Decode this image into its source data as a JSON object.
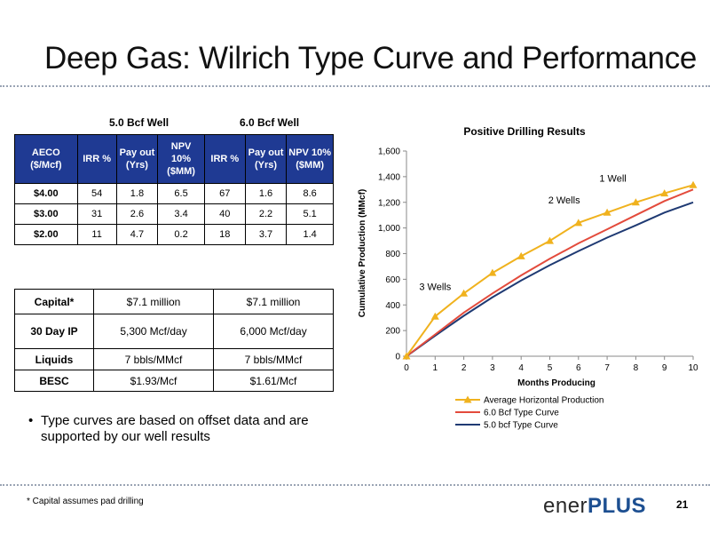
{
  "slide": {
    "title": "Deep Gas: Wilrich Type Curve and Performance",
    "page_number": "21",
    "footnote": "* Capital assumes pad drilling",
    "logo": {
      "part1": "ener",
      "part2": "PLUS"
    },
    "bullet": "Type curves are based on offset data and are supported by our well results"
  },
  "econ_table": {
    "group1": "5.0 Bcf Well",
    "group2": "6.0 Bcf Well",
    "headers": [
      "AECO ($/Mcf)",
      "IRR %",
      "Pay out (Yrs)",
      "NPV 10% ($MM)",
      "IRR %",
      "Pay out (Yrs)",
      "NPV 10% ($MM)"
    ],
    "rows": [
      [
        "$4.00",
        "54",
        "1.8",
        "6.5",
        "67",
        "1.6",
        "8.6"
      ],
      [
        "$3.00",
        "31",
        "2.6",
        "3.4",
        "40",
        "2.2",
        "5.1"
      ],
      [
        "$2.00",
        "11",
        "4.7",
        "0.2",
        "18",
        "3.7",
        "1.4"
      ]
    ]
  },
  "capital_table": {
    "rows": [
      [
        "Capital*",
        "$7.1 million",
        "$7.1 million"
      ],
      [
        "30 Day IP",
        "5,300 Mcf/day",
        "6,000 Mcf/day"
      ],
      [
        "Liquids",
        "7 bbls/MMcf",
        "7 bbls/MMcf"
      ],
      [
        "BESC",
        "$1.93/Mcf",
        "$1.61/Mcf"
      ]
    ]
  },
  "chart_data": {
    "type": "line",
    "title": "Positive Drilling Results",
    "xlabel": "Months Producing",
    "ylabel": "Cumulative Production (MMcf)",
    "x": [
      0,
      1,
      2,
      3,
      4,
      5,
      6,
      7,
      8,
      9,
      10
    ],
    "xlim": [
      0,
      10
    ],
    "ylim": [
      0,
      1600
    ],
    "yticks": [
      0,
      200,
      400,
      600,
      800,
      1000,
      1200,
      1400,
      1600
    ],
    "ytick_labels": [
      "0",
      "200",
      "400",
      "600",
      "800",
      "1,000",
      "1,200",
      "1,400",
      "1,600"
    ],
    "series": [
      {
        "name": "Average Horizontal Production",
        "color": "#f0b21e",
        "marker": "triangle",
        "values": [
          0,
          310,
          490,
          650,
          780,
          900,
          1040,
          1120,
          1200,
          1270,
          1335
        ]
      },
      {
        "name": "6.0 Bcf Type Curve",
        "color": "#e34b3c",
        "marker": "none",
        "values": [
          0,
          170,
          340,
          490,
          630,
          760,
          880,
          990,
          1100,
          1210,
          1300
        ]
      },
      {
        "name": "5.0 bcf Type Curve",
        "color": "#1f3a73",
        "marker": "none",
        "values": [
          0,
          160,
          315,
          460,
          590,
          710,
          820,
          925,
          1020,
          1120,
          1200
        ]
      }
    ],
    "annotations": [
      {
        "text": "3 Wells",
        "x": 1.0,
        "y": 515
      },
      {
        "text": "2 Wells",
        "x": 5.5,
        "y": 1190
      },
      {
        "text": "1 Well",
        "x": 7.2,
        "y": 1360
      }
    ],
    "legend": "bottom"
  }
}
